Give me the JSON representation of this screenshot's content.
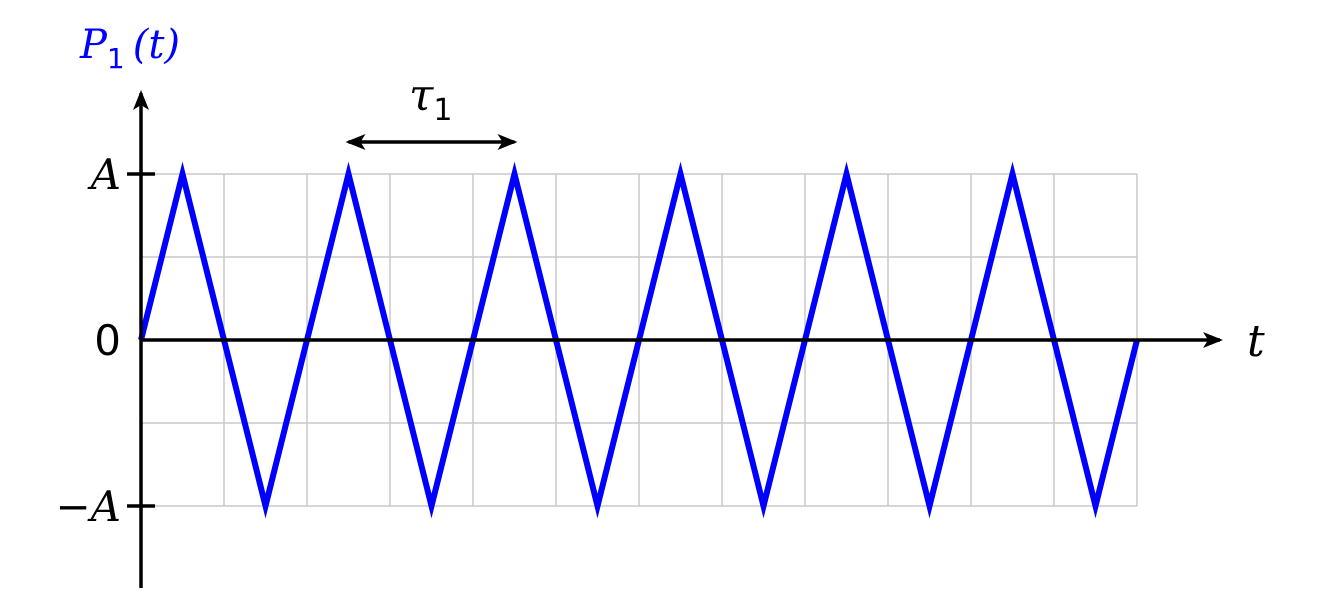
{
  "chart_data": {
    "type": "line",
    "ylabel_main": "P",
    "ylabel_sub": "1",
    "ylabel_arg": "(t)",
    "xlabel": "t",
    "period_label_main": "τ",
    "period_label_sub": "1",
    "y_ticks": [
      {
        "value": 1,
        "label": "A"
      },
      {
        "value": 0,
        "label": "0"
      },
      {
        "value": -1,
        "label": "−A"
      }
    ],
    "series": [
      {
        "x": [
          0,
          0.25,
          0.75,
          1.25,
          1.75,
          2.25,
          2.75,
          3.25,
          3.75,
          4.25,
          4.75,
          5.25,
          5.75,
          6.0
        ],
        "y": [
          0,
          1,
          -1,
          1,
          -1,
          1,
          -1,
          1,
          -1,
          1,
          -1,
          1,
          -1,
          0
        ]
      }
    ],
    "period": 1,
    "period_arrow": [
      1.25,
      2.25
    ],
    "xlim": [
      0,
      6
    ],
    "ylim": [
      -1,
      1
    ],
    "grid": true,
    "colors": {
      "series": "#0000ff",
      "axis": "#000000",
      "grid": "#c8c8c8",
      "ylabel": "#0000ff"
    }
  }
}
